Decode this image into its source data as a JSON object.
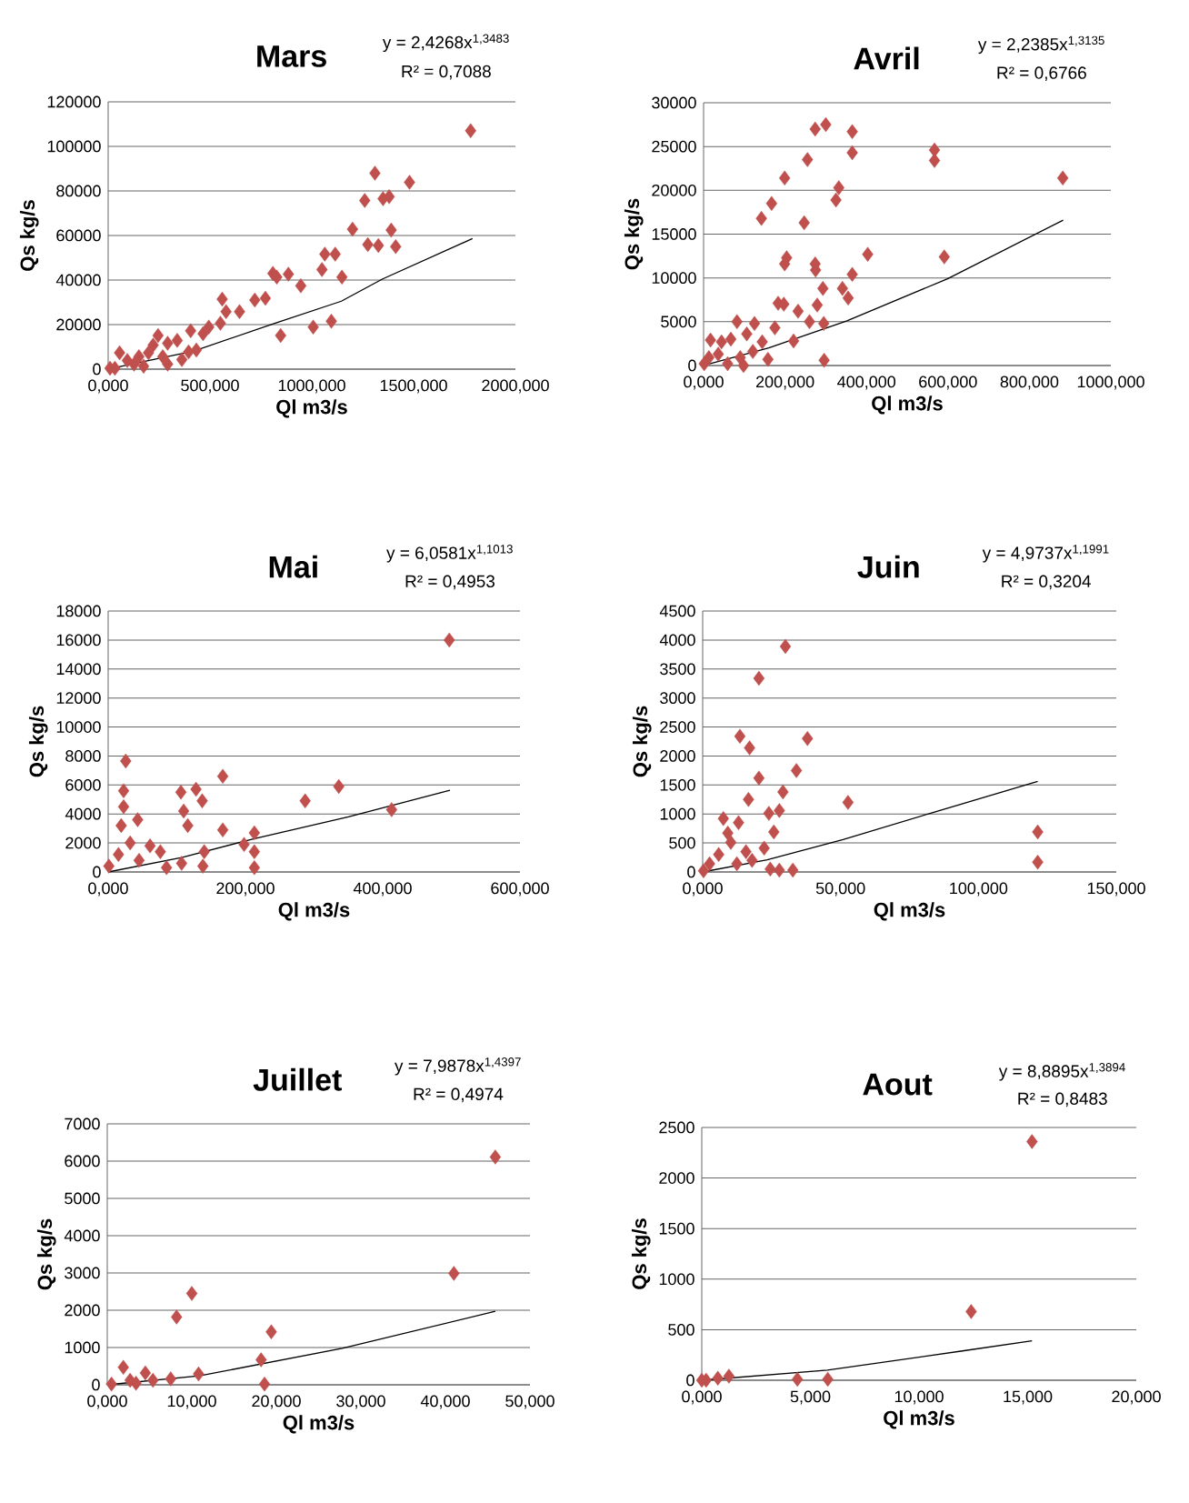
{
  "chart_data": [
    {
      "type": "scatter",
      "title": "Mars",
      "xlabel": "Ql m3/s",
      "ylabel": "Qs kg/s",
      "annotations": [
        "y = 2,4268x$^{1,3483}$",
        "R² = 0,7088"
      ],
      "grid": "y",
      "marker": "diamond",
      "xlim": [
        0,
        2000
      ],
      "ylim": [
        0,
        120000
      ],
      "xticks": [
        {
          "value": 0,
          "label": "0,000"
        },
        {
          "value": 500,
          "label": "500,000"
        },
        {
          "value": 1000,
          "label": "1000,000"
        },
        {
          "value": 1500,
          "label": "1500,000"
        },
        {
          "value": 2000,
          "label": "2000,000"
        }
      ],
      "yticks": [
        0,
        20000,
        40000,
        60000,
        80000,
        100000,
        120000
      ],
      "series": [
        {
          "type": "scatter",
          "color": "#c0504d",
          "x": [
            1780,
            1310,
            1480,
            1350,
            1380,
            1260,
            1390,
            1200,
            1275,
            1327,
            1412,
            1064,
            1115,
            1050,
            1148,
            1096,
            1007,
            847,
            946,
            885,
            809,
            828,
            772,
            720,
            560,
            579,
            645,
            494,
            551,
            405,
            466,
            395,
            56,
            94,
            151,
            221,
            245,
            292,
            339,
            362,
            292,
            174,
            9,
            433,
            198,
            127,
            268,
            33
          ],
          "values": [
            107000,
            88000,
            83900,
            76500,
            77400,
            75700,
            62400,
            62800,
            55900,
            55500,
            55000,
            51600,
            51600,
            44700,
            41300,
            21500,
            18900,
            15100,
            37400,
            42600,
            43000,
            41300,
            31800,
            31000,
            31400,
            25800,
            25800,
            18900,
            20600,
            17200,
            15900,
            7700,
            7300,
            3900,
            5600,
            10800,
            15100,
            11600,
            12900,
            4300,
            2200,
            1300,
            400,
            8600,
            7300,
            2200,
            5600,
            400
          ]
        },
        {
          "type": "line",
          "color": "#000000",
          "marker": "none",
          "x": [
            0,
            420,
            821,
            1145,
            1346,
            1789
          ],
          "values": [
            0,
            8100,
            20700,
            30500,
            40400,
            58600
          ]
        }
      ]
    },
    {
      "type": "scatter",
      "title": "Avril",
      "xlabel": "Ql m3/s",
      "ylabel": "Qs kg/s",
      "annotations": [
        "y = 2,2385x$^{1,3135}$",
        "R² = 0,6766"
      ],
      "grid": "y",
      "marker": "diamond",
      "xlim": [
        0,
        1000
      ],
      "ylim": [
        0,
        30000
      ],
      "xticks": [
        {
          "value": 0,
          "label": "0,000"
        },
        {
          "value": 200,
          "label": "200,000"
        },
        {
          "value": 400,
          "label": "400,000"
        },
        {
          "value": 600,
          "label": "600,000"
        },
        {
          "value": 800,
          "label": "800,000"
        },
        {
          "value": 1000,
          "label": "1000,000"
        }
      ],
      "yticks": [
        0,
        5000,
        10000,
        15000,
        20000,
        25000,
        30000
      ],
      "series": [
        {
          "type": "scatter",
          "color": "#c0504d",
          "x": [
            300,
            274,
            365,
            365,
            567,
            567,
            255,
            882,
            199,
            332,
            325,
            167,
            142,
            247,
            403,
            591,
            204,
            199,
            274,
            275,
            365,
            293,
            341,
            355,
            183,
            197,
            232,
            279,
            260,
            295,
            175,
            221,
            296,
            158,
            82,
            125,
            17,
            44,
            67,
            106,
            144,
            13,
            36,
            90,
            121,
            1.5,
            59,
            98
          ],
          "values": [
            27500,
            27000,
            26700,
            24300,
            24600,
            23400,
            23500,
            21400,
            21400,
            20300,
            18900,
            18500,
            16800,
            16300,
            12700,
            12400,
            12300,
            11600,
            11600,
            10900,
            10400,
            8800,
            8800,
            7700,
            7100,
            7000,
            6200,
            6900,
            5000,
            4800,
            4300,
            2800,
            600,
            700,
            5000,
            4800,
            2900,
            2700,
            3000,
            3600,
            2700,
            900,
            1300,
            900,
            1600,
            200,
            200,
            0
          ]
        },
        {
          "type": "line",
          "color": "#000000",
          "marker": "none",
          "x": [
            0,
            160,
            352,
            599,
            883
          ],
          "values": [
            0,
            2000,
            5100,
            9900,
            16600
          ]
        }
      ]
    },
    {
      "type": "scatter",
      "title": "Mai",
      "xlabel": "Ql m3/s",
      "ylabel": "Qs kg/s",
      "annotations": [
        "y = 6,0581x$^{1,1013}$",
        "R² = 0,4953"
      ],
      "grid": "y",
      "marker": "diamond",
      "xlim": [
        0,
        600
      ],
      "ylim": [
        0,
        18000
      ],
      "xticks": [
        {
          "value": 0,
          "label": "0,000"
        },
        {
          "value": 200,
          "label": "200,000"
        },
        {
          "value": 400,
          "label": "400,000"
        },
        {
          "value": 600,
          "label": "600,000"
        }
      ],
      "yticks": [
        0,
        2000,
        4000,
        6000,
        8000,
        10000,
        12000,
        14000,
        16000,
        18000
      ],
      "series": [
        {
          "type": "scatter",
          "color": "#c0504d",
          "x": [
            497,
            25.6,
            167,
            336,
            287,
            413,
            22.5,
            106,
            128,
            137,
            110,
            22.5,
            43,
            19,
            116,
            167,
            213,
            198,
            213,
            213,
            138,
            140,
            61,
            76,
            32,
            15,
            45,
            107,
            1,
            85
          ],
          "values": [
            16000,
            7650,
            6600,
            5900,
            4900,
            4300,
            5600,
            5500,
            5700,
            4900,
            4200,
            4500,
            3600,
            3200,
            3200,
            2900,
            2700,
            1900,
            1400,
            300,
            400,
            1400,
            1800,
            1400,
            2000,
            1200,
            800,
            600,
            400,
            300
          ]
        },
        {
          "type": "line",
          "color": "#000000",
          "marker": "none",
          "x": [
            0,
            107,
            213,
            350,
            498
          ],
          "values": [
            0,
            1000,
            2300,
            3800,
            5630
          ]
        }
      ]
    },
    {
      "type": "scatter",
      "title": "Juin",
      "xlabel": "Ql m3/s",
      "ylabel": "Qs kg/s",
      "annotations": [
        "y = 4,9737x$^{1,1991}$",
        "R² = 0,3204"
      ],
      "grid": "y",
      "marker": "diamond",
      "xlim": [
        0,
        150
      ],
      "ylim": [
        0,
        4500
      ],
      "xticks": [
        {
          "value": 0,
          "label": "0,000"
        },
        {
          "value": 50,
          "label": "50,000"
        },
        {
          "value": 100,
          "label": "100,000"
        },
        {
          "value": 150,
          "label": "150,000"
        }
      ],
      "yticks": [
        0,
        500,
        1000,
        1500,
        2000,
        2500,
        3000,
        3500,
        4000,
        4500
      ],
      "series": [
        {
          "type": "scatter",
          "color": "#c0504d",
          "x": [
            30,
            20.4,
            13.5,
            17,
            38,
            34,
            20.4,
            29.1,
            16.6,
            52.7,
            24,
            27.8,
            13,
            7.5,
            25.8,
            121.5,
            121.5,
            22.3,
            32.7,
            27.8,
            24.5,
            9.1,
            10.2,
            15.7,
            5.8,
            2.5,
            12.4,
            0.3,
            17.9
          ],
          "values": [
            3890,
            3340,
            2340,
            2140,
            2300,
            1750,
            1620,
            1380,
            1250,
            1200,
            1010,
            1060,
            850,
            920,
            690,
            690,
            170,
            410,
            30,
            30,
            50,
            670,
            510,
            350,
            300,
            140,
            140,
            20,
            200
          ]
        },
        {
          "type": "line",
          "color": "#000000",
          "marker": "none",
          "x": [
            0,
            23.4,
            50.9,
            83.8,
            121.5
          ],
          "values": [
            0,
            210,
            560,
            1030,
            1560
          ]
        }
      ]
    },
    {
      "type": "scatter",
      "title": "Juillet",
      "xlabel": "Ql m3/s",
      "ylabel": "Qs kg/s",
      "annotations": [
        "y = 7,9878x$^{1,4397}$",
        "R² = 0,4974"
      ],
      "grid": "y",
      "marker": "diamond",
      "xlim": [
        0,
        50
      ],
      "ylim": [
        0,
        7000
      ],
      "xticks": [
        {
          "value": 0,
          "label": "0,000"
        },
        {
          "value": 10,
          "label": "10,000"
        },
        {
          "value": 20,
          "label": "20,000"
        },
        {
          "value": 30,
          "label": "30,000"
        },
        {
          "value": 40,
          "label": "40,000"
        },
        {
          "value": 50,
          "label": "50,000"
        }
      ],
      "yticks": [
        0,
        1000,
        2000,
        3000,
        4000,
        5000,
        6000,
        7000
      ],
      "series": [
        {
          "type": "scatter",
          "color": "#c0504d",
          "x": [
            45.9,
            41,
            10,
            8.2,
            19.4,
            18.2,
            18.6,
            10.8,
            1.9,
            4.5,
            7.5,
            5.4,
            2.7,
            0.5,
            3.4
          ],
          "values": [
            6110,
            2990,
            2450,
            1820,
            1420,
            670,
            20,
            290,
            470,
            320,
            160,
            120,
            120,
            20,
            40
          ]
        },
        {
          "type": "line",
          "color": "#000000",
          "marker": "none",
          "x": [
            0,
            10.9,
            27.8,
            45.9
          ],
          "values": [
            0,
            240,
            980,
            1970
          ]
        }
      ]
    },
    {
      "type": "scatter",
      "title": "Aout",
      "xlabel": "Ql m3/s",
      "ylabel": "Qs kg/s",
      "annotations": [
        "y = 8,8895x$^{1,3894}$",
        "R² = 0,8483"
      ],
      "grid": "y",
      "marker": "diamond",
      "xlim": [
        0,
        20
      ],
      "ylim": [
        0,
        2500
      ],
      "xticks": [
        {
          "value": 0,
          "label": "0,000"
        },
        {
          "value": 5,
          "label": "5,000"
        },
        {
          "value": 10,
          "label": "10,000"
        },
        {
          "value": 15,
          "label": "15,000"
        },
        {
          "value": 20,
          "label": "20,000"
        }
      ],
      "yticks": [
        0,
        500,
        1000,
        1500,
        2000,
        2500
      ],
      "series": [
        {
          "type": "scatter",
          "color": "#c0504d",
          "x": [
            15.2,
            12.4,
            4.4,
            5.8,
            1.25,
            0.74,
            0.2,
            0
          ],
          "values": [
            2360,
            680,
            10,
            10,
            40,
            20,
            0,
            0
          ]
        },
        {
          "type": "line",
          "color": "#000000",
          "marker": "none",
          "x": [
            0,
            5.78,
            12,
            15.2
          ],
          "values": [
            0,
            100,
            290,
            390
          ]
        }
      ]
    }
  ]
}
